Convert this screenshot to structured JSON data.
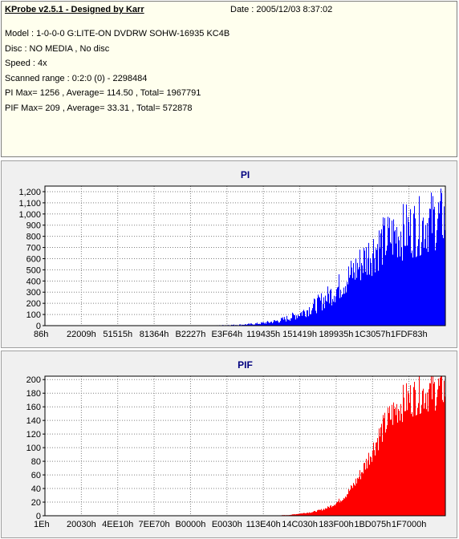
{
  "info": {
    "title": "KProbe v2.5.1 - Designed by Karr",
    "date": "Date : 2005/12/03 8:37:02",
    "lines": [
      "Model : 1-0-0-0 G:LITE-ON DVDRW SOHW-16935 KC4B",
      "Disc : NO MEDIA , No disc",
      "Speed : 4x",
      "Scanned range : 0:2:0 (0) - 2298484",
      "PI Max= 1256 , Average= 114.50 , Total= 1967791",
      "PIF Max= 209 , Average= 33.31 , Total= 572878"
    ]
  },
  "colors": {
    "pi_series": "#0000ff",
    "pif_series": "#ff0000",
    "title": "#00007f"
  },
  "chart_data": [
    {
      "type": "bar",
      "title": "PI",
      "xlabel": "",
      "ylabel": "",
      "ylim": [
        0,
        1250
      ],
      "yticks": [
        "0",
        "100",
        "200",
        "300",
        "400",
        "500",
        "600",
        "700",
        "800",
        "900",
        "1,000",
        "1,100",
        "1,200"
      ],
      "xticks": [
        "86h",
        "22009h",
        "51515h",
        "81364h",
        "B2227h",
        "E3F64h",
        "119435h",
        "151419h",
        "189935h",
        "1C3057h",
        "1FDF83h"
      ],
      "grid": true,
      "series": [
        {
          "values": [
            1,
            1,
            2,
            1,
            1,
            1,
            2,
            1,
            1,
            1,
            1,
            2,
            1,
            1,
            1,
            1,
            2,
            1,
            1,
            1,
            1,
            2,
            1,
            1,
            1,
            1,
            1,
            2,
            1,
            1,
            1,
            2,
            2,
            3,
            4,
            5,
            6,
            8,
            10,
            13,
            17,
            22,
            28,
            35,
            45,
            58,
            75,
            95,
            118,
            145,
            175,
            210,
            250,
            295,
            345,
            400,
            460,
            525,
            595,
            665,
            735,
            800,
            860,
            915,
            960,
            1000,
            1030,
            1060,
            1080,
            1100,
            1120,
            1150,
            1180,
            1210,
            1230,
            1256
          ],
          "peak": [
            2,
            2,
            3,
            2,
            2,
            2,
            3,
            2,
            2,
            2,
            2,
            3,
            2,
            2,
            2,
            2,
            3,
            2,
            2,
            2,
            2,
            3,
            2,
            2,
            2,
            2,
            2,
            3,
            2,
            2,
            2,
            4,
            4,
            6,
            8,
            10,
            12,
            15,
            19,
            24,
            30,
            38,
            47,
            58,
            72,
            90,
            112,
            138,
            168,
            200,
            236,
            276,
            320,
            368,
            420,
            476,
            536,
            600,
            668,
            738,
            808,
            872,
            928,
            976,
            1016,
            1048,
            1076,
            1100,
            1120,
            1140,
            1160,
            1190,
            1215,
            1235,
            1245,
            1256
          ]
        }
      ]
    },
    {
      "type": "bar",
      "title": "PIF",
      "xlabel": "",
      "ylabel": "",
      "ylim": [
        0,
        205
      ],
      "yticks": [
        "0",
        "20",
        "40",
        "60",
        "80",
        "100",
        "120",
        "140",
        "160",
        "180",
        "200"
      ],
      "xticks": [
        "1Eh",
        "20030h",
        "4EE10h",
        "7EE70h",
        "B0000h",
        "E0030h",
        "113E40h",
        "14C030h",
        "183F00h",
        "1BD075h",
        "1F7000h"
      ],
      "grid": true,
      "series": [
        {
          "values": [
            0,
            0,
            0,
            0,
            0,
            0,
            0,
            0,
            0,
            0,
            0,
            0,
            0,
            0,
            0,
            0,
            0,
            0,
            0,
            0,
            0,
            0,
            0,
            0,
            0,
            0,
            0,
            0,
            0,
            0,
            0,
            0,
            0,
            0,
            0,
            0,
            0,
            0,
            0,
            0,
            0,
            0,
            0,
            0,
            0,
            0,
            0,
            0,
            1,
            1,
            2,
            3,
            4,
            5,
            6,
            8,
            10,
            13,
            17,
            22,
            28,
            36,
            46,
            58,
            72,
            88,
            105,
            122,
            138,
            152,
            164,
            174,
            182,
            188,
            192,
            196,
            199,
            201,
            203,
            205,
            207,
            209
          ]
        }
      ]
    }
  ]
}
